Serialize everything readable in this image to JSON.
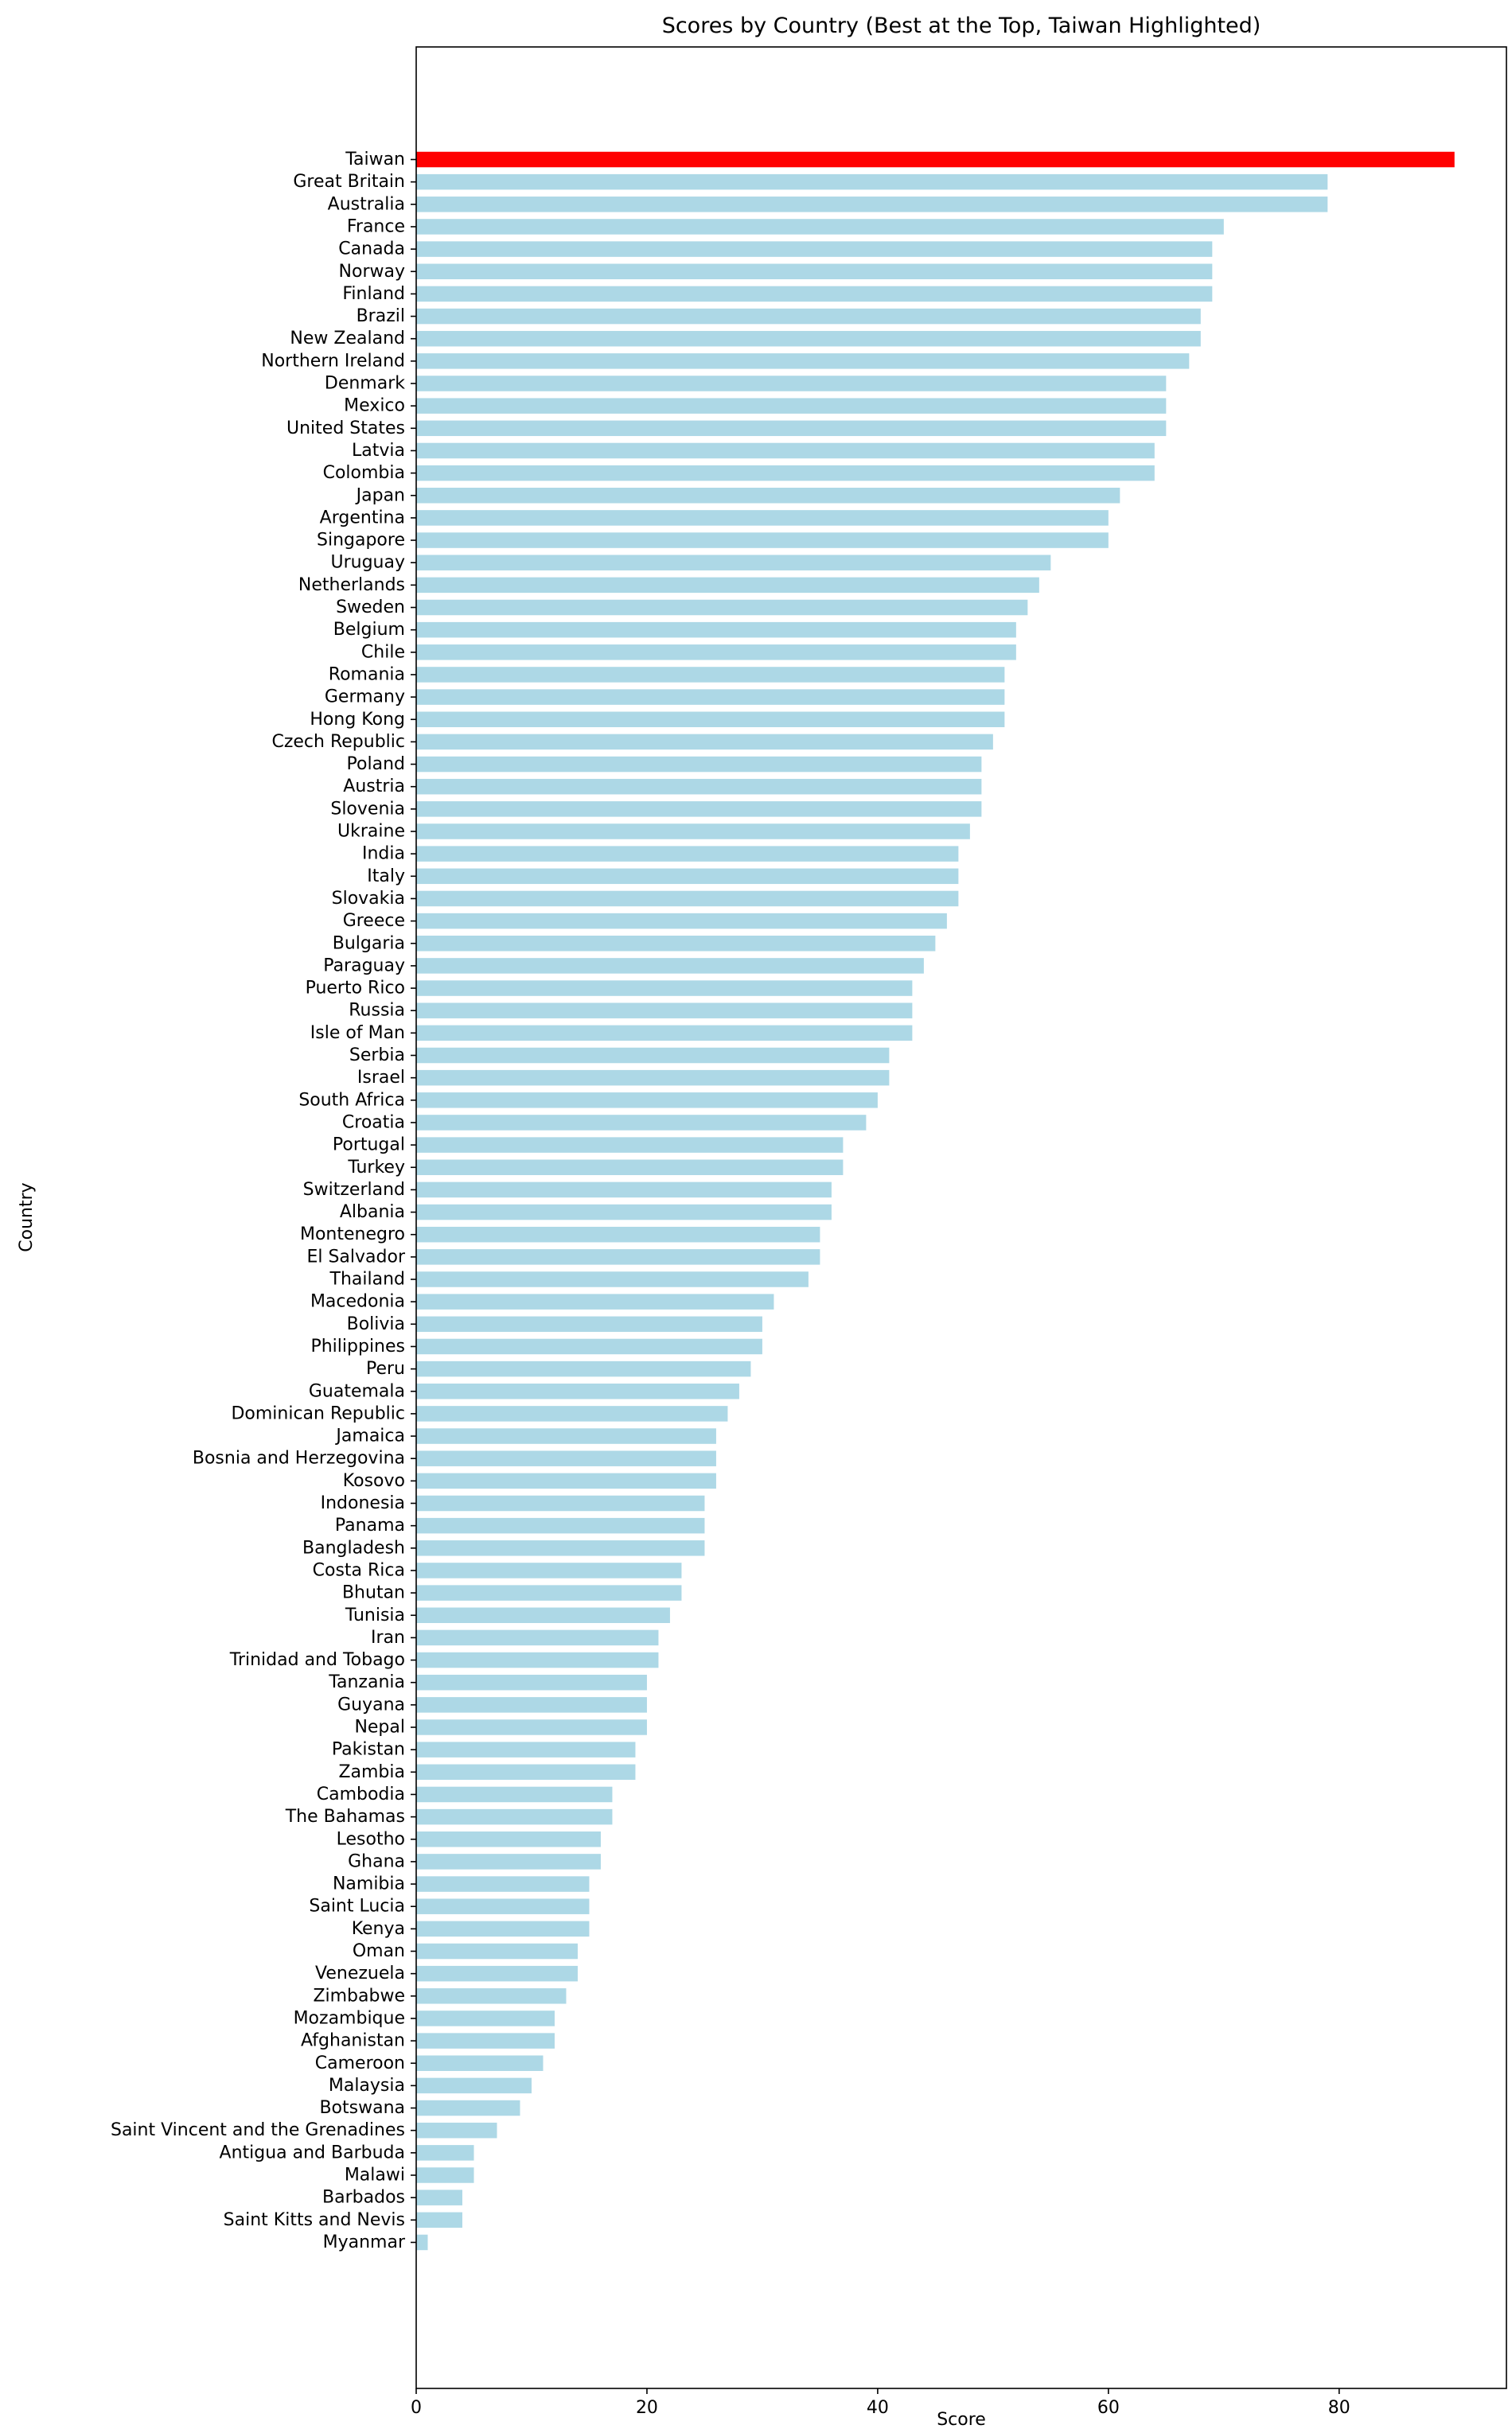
{
  "chart_data": {
    "type": "bar",
    "orientation": "horizontal",
    "title": "Scores by Country (Best at the Top, Taiwan Highlighted)",
    "xlabel": "Score",
    "ylabel": "Country",
    "xlim": [
      0,
      94.5
    ],
    "xticks": [
      "0",
      "20",
      "40",
      "60",
      "80"
    ],
    "grid": false,
    "legend": "none",
    "colors": {
      "bar": "#add8e6",
      "highlight": "#ff0000"
    },
    "highlight": "Taiwan",
    "categories": [
      "Taiwan",
      "Great Britain",
      "Australia",
      "France",
      "Canada",
      "Norway",
      "Finland",
      "Brazil",
      "New Zealand",
      "Northern Ireland",
      "Denmark",
      "Mexico",
      "United States",
      "Latvia",
      "Colombia",
      "Japan",
      "Argentina",
      "Singapore",
      "Uruguay",
      "Netherlands",
      "Sweden",
      "Belgium",
      "Chile",
      "Romania",
      "Germany",
      "Hong Kong",
      "Czech Republic",
      "Poland",
      "Austria",
      "Slovenia",
      "Ukraine",
      "India",
      "Italy",
      "Slovakia",
      "Greece",
      "Bulgaria",
      "Paraguay",
      "Puerto Rico",
      "Russia",
      "Isle of Man",
      "Serbia",
      "Israel",
      "South Africa",
      "Croatia",
      "Portugal",
      "Turkey",
      "Switzerland",
      "Albania",
      "Montenegro",
      "El Salvador",
      "Thailand",
      "Macedonia",
      "Bolivia",
      "Philippines",
      "Peru",
      "Guatemala",
      "Dominican Republic",
      "Jamaica",
      "Bosnia and Herzegovina",
      "Kosovo",
      "Indonesia",
      "Panama",
      "Bangladesh",
      "Costa Rica",
      "Bhutan",
      "Tunisia",
      "Iran",
      "Trinidad and Tobago",
      "Tanzania",
      "Guyana",
      "Nepal",
      "Pakistan",
      "Zambia",
      "Cambodia",
      "The Bahamas",
      "Lesotho",
      "Ghana",
      "Namibia",
      "Saint Lucia",
      "Kenya",
      "Oman",
      "Venezuela",
      "Zimbabwe",
      "Mozambique",
      "Afghanistan",
      "Cameroon",
      "Malaysia",
      "Botswana",
      "Saint Vincent and the Grenadines",
      "Antigua and Barbuda",
      "Malawi",
      "Barbados",
      "Saint Kitts and Nevis",
      "Myanmar"
    ],
    "values": [
      90,
      79,
      79,
      70,
      69,
      69,
      69,
      68,
      68,
      67,
      65,
      65,
      65,
      64,
      64,
      61,
      60,
      60,
      55,
      54,
      53,
      52,
      52,
      51,
      51,
      51,
      50,
      49,
      49,
      49,
      48,
      47,
      47,
      47,
      46,
      45,
      44,
      43,
      43,
      43,
      41,
      41,
      40,
      39,
      37,
      37,
      36,
      36,
      35,
      35,
      34,
      31,
      30,
      30,
      29,
      28,
      27,
      26,
      26,
      26,
      25,
      25,
      25,
      23,
      23,
      22,
      21,
      21,
      20,
      20,
      20,
      19,
      19,
      17,
      17,
      16,
      16,
      15,
      15,
      15,
      14,
      14,
      13,
      12,
      12,
      11,
      10,
      9,
      7,
      5,
      5,
      4,
      4,
      1
    ]
  }
}
